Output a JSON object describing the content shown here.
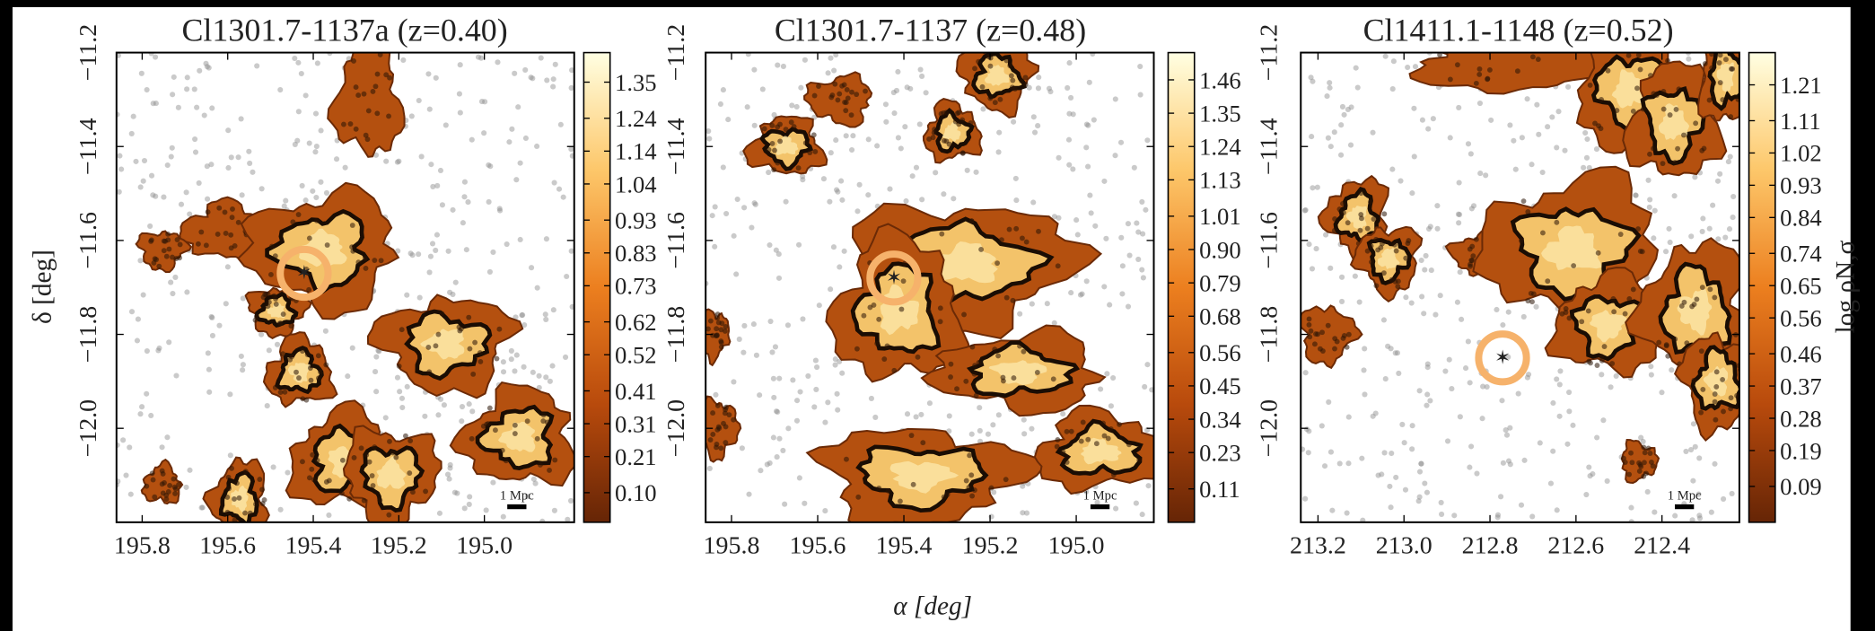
{
  "figure": {
    "xlabel": "α [deg]",
    "ylabel": "δ [deg]"
  },
  "chart_data": [
    {
      "type": "density_map",
      "title": "Cl1301.7-1137a (z=0.40)",
      "xlim": [
        195.86,
        194.79
      ],
      "xticks": [
        195.8,
        195.6,
        195.4,
        195.2,
        {
          "value": 195,
          "label": "195.0"
        }
      ],
      "ylim": [
        -12.2,
        -11.2
      ],
      "yticks": [
        {
          "value": -11.2,
          "label": "−11.2"
        },
        {
          "value": -11.4,
          "label": "−11.4"
        },
        {
          "value": -11.6,
          "label": "−11.6"
        },
        {
          "value": -11.8,
          "label": "−11.8"
        },
        {
          "value": -12,
          "label": "−12.0"
        }
      ],
      "colorbar_lim": [
        0.01,
        1.44
      ],
      "colorbar_ticks": [
        {
          "value": 0.1,
          "label": "0.10"
        },
        0.21,
        0.31,
        0.41,
        0.52,
        0.62,
        0.73,
        0.83,
        0.93,
        1.04,
        1.14,
        1.24,
        1.35
      ],
      "scale_bar_label": "1 Mpc"
    },
    {
      "type": "density_map",
      "title": "Cl1301.7-1137 (z=0.48)",
      "xlim": [
        195.86,
        194.82
      ],
      "xticks": [
        195.8,
        195.6,
        195.4,
        195.2,
        {
          "value": 195,
          "label": "195.0"
        }
      ],
      "ylim": [
        -12.2,
        -11.2
      ],
      "yticks": [
        {
          "value": -11.2,
          "label": "−11.2"
        },
        {
          "value": -11.4,
          "label": "−11.4"
        },
        {
          "value": -11.6,
          "label": "−11.6"
        },
        {
          "value": -11.8,
          "label": "−11.8"
        },
        {
          "value": -12,
          "label": "−12.0"
        }
      ],
      "colorbar_lim": [
        0.0,
        1.55
      ],
      "colorbar_ticks": [
        0.11,
        0.23,
        0.34,
        0.45,
        0.56,
        0.68,
        0.79,
        {
          "value": 0.9,
          "label": "0.90"
        },
        1.01,
        1.13,
        1.24,
        1.35,
        1.46
      ],
      "scale_bar_label": "1 Mpc"
    },
    {
      "type": "density_map",
      "title": "Cl1411.1-1148 (z=0.52)",
      "xlim": [
        213.24,
        212.22
      ],
      "xticks": [
        213.2,
        {
          "value": 213,
          "label": "213.0"
        },
        212.8,
        212.6,
        212.4
      ],
      "ylim": [
        -12.2,
        -11.2
      ],
      "yticks": [
        {
          "value": -11.2,
          "label": "−11.2"
        },
        {
          "value": -11.4,
          "label": "−11.4"
        },
        {
          "value": -11.6,
          "label": "−11.6"
        },
        {
          "value": -11.8,
          "label": "−11.8"
        },
        {
          "value": -12,
          "label": "−12.0"
        }
      ],
      "colorbar_lim": [
        -0.01,
        1.3
      ],
      "colorbar_ticks": [
        0.09,
        0.19,
        0.28,
        0.37,
        0.46,
        0.56,
        0.65,
        0.74,
        0.84,
        0.93,
        1.02,
        1.11,
        1.21
      ],
      "colorbar_label": "log ρN,σ",
      "scale_bar_label": "1 Mpc"
    }
  ]
}
